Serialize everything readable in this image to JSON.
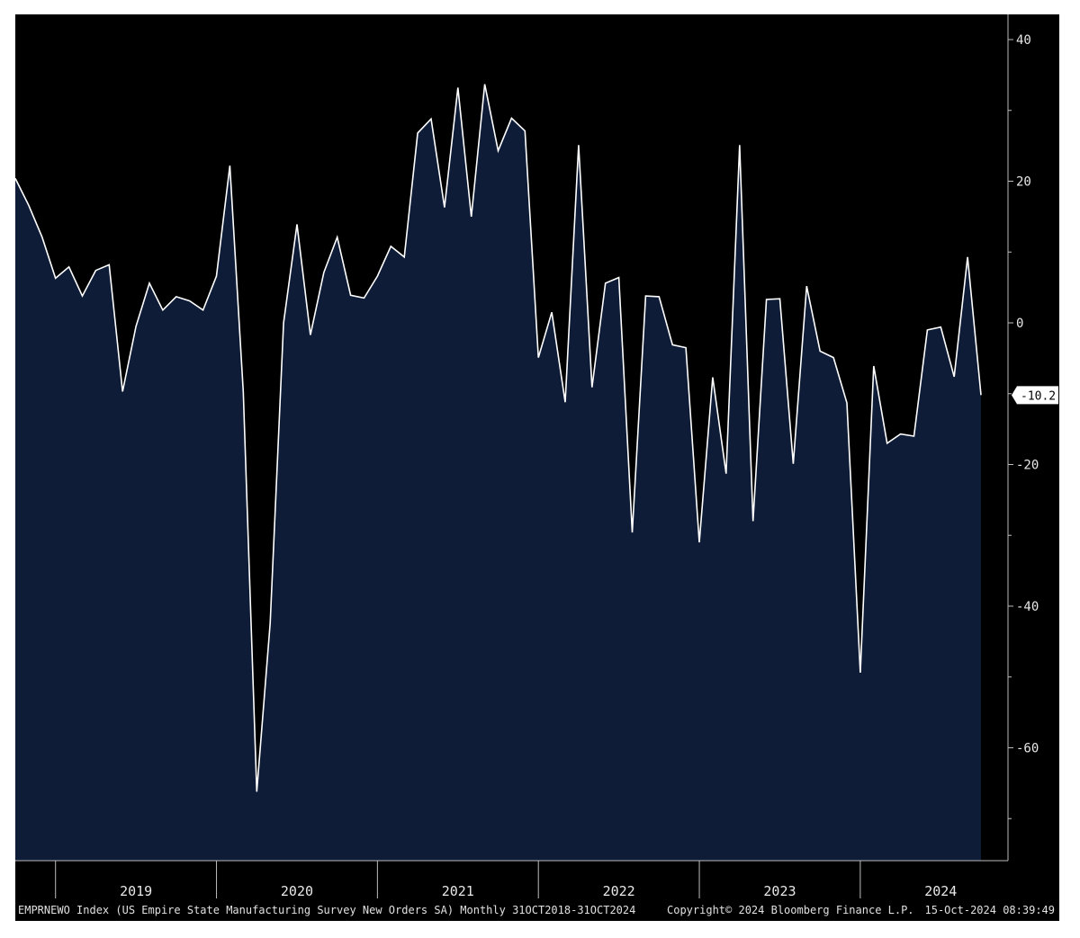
{
  "chart_data": {
    "type": "area",
    "frequency": "Monthly",
    "x_start": "2018-10",
    "x_end": "2024-10",
    "x": [
      "2018-10",
      "2018-11",
      "2018-12",
      "2019-01",
      "2019-02",
      "2019-03",
      "2019-04",
      "2019-05",
      "2019-06",
      "2019-07",
      "2019-08",
      "2019-09",
      "2019-10",
      "2019-11",
      "2019-12",
      "2020-01",
      "2020-02",
      "2020-03",
      "2020-04",
      "2020-05",
      "2020-06",
      "2020-07",
      "2020-08",
      "2020-09",
      "2020-10",
      "2020-11",
      "2020-12",
      "2021-01",
      "2021-02",
      "2021-03",
      "2021-04",
      "2021-05",
      "2021-06",
      "2021-07",
      "2021-08",
      "2021-09",
      "2021-10",
      "2021-11",
      "2021-12",
      "2022-01",
      "2022-02",
      "2022-03",
      "2022-04",
      "2022-05",
      "2022-06",
      "2022-07",
      "2022-08",
      "2022-09",
      "2022-10",
      "2022-11",
      "2022-12",
      "2023-01",
      "2023-02",
      "2023-03",
      "2023-04",
      "2023-05",
      "2023-06",
      "2023-07",
      "2023-08",
      "2023-09",
      "2023-10",
      "2023-11",
      "2023-12",
      "2024-01",
      "2024-02",
      "2024-03",
      "2024-04",
      "2024-05",
      "2024-06",
      "2024-07",
      "2024-08",
      "2024-09",
      "2024-10"
    ],
    "series": [
      {
        "values": [
          20.4,
          16.6,
          12.1,
          6.3,
          7.9,
          3.8,
          7.4,
          8.2,
          -9.7,
          -0.5,
          5.6,
          1.8,
          3.7,
          3.1,
          1.8,
          6.6,
          22.2,
          -9.7,
          -66.2,
          -42.4,
          0.0,
          13.9,
          -1.7,
          7.1,
          12.1,
          3.9,
          3.5,
          6.6,
          10.8,
          9.3,
          26.8,
          28.8,
          16.3,
          33.2,
          15.0,
          33.7,
          24.3,
          28.9,
          27.1,
          -4.9,
          1.5,
          -11.2,
          25.1,
          -9.1,
          5.6,
          6.4,
          -29.6,
          3.8,
          3.7,
          -3.1,
          -3.5,
          -31.0,
          -7.7,
          -21.3,
          25.1,
          -28.0,
          3.3,
          3.4,
          -19.9,
          5.2,
          -4.0,
          -4.9,
          -11.3,
          -49.4,
          -6.1,
          -17.0,
          -15.7,
          -16.0,
          -1.0,
          -0.6,
          -7.6,
          9.3,
          -10.2
        ]
      }
    ],
    "ylim": [
      -75,
      44
    ],
    "yticks": [
      "40",
      "20",
      "0",
      "-20",
      "-40",
      "-60"
    ],
    "xtick_labels": [
      "2019",
      "2020",
      "2021",
      "2022",
      "2023",
      "2024"
    ],
    "last_value_label": "-10.2",
    "grid": false,
    "colors": {
      "background": "#000000",
      "area_fill": "#0e1c37",
      "line": "#ffffff",
      "text": "#e8e8e8",
      "page": "#ffffff"
    }
  },
  "footer": {
    "ticker_info": "EMPRNEWO Index (US Empire State Manufacturing Survey New Orders SA)  Monthly 31OCT2018-31OCT2024",
    "copyright": "Copyright© 2024 Bloomberg Finance L.P.",
    "timestamp": "15-Oct-2024 08:39:49"
  }
}
